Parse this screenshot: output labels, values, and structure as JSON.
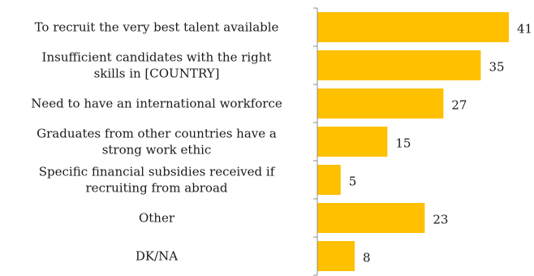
{
  "chart_data": {
    "type": "bar",
    "orientation": "horizontal",
    "categories": [
      [
        "To recruit the very best talent available"
      ],
      [
        "Insufficient candidates with the right",
        "skills in [COUNTRY]"
      ],
      [
        "Need to  have an international workforce"
      ],
      [
        "Graduates from other countries have a",
        "strong work ethic"
      ],
      [
        "Specific financial subsidies received if",
        "recruiting from abroad"
      ],
      [
        "Other"
      ],
      [
        "DK/NA"
      ]
    ],
    "values": [
      41,
      35,
      27,
      15,
      5,
      23,
      8
    ],
    "xlim": [
      0,
      45
    ],
    "grid": false,
    "legend": "none",
    "bar_color": "#FFC000",
    "title": "",
    "xlabel": "",
    "ylabel": ""
  }
}
